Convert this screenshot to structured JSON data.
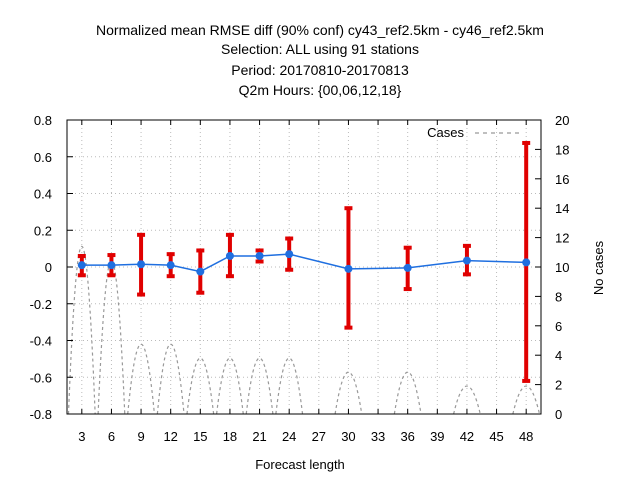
{
  "chart_data": {
    "type": "line",
    "title_lines": [
      "Normalized mean RMSE diff (90% conf) cy43_ref2.5km - cy46_ref2.5km",
      "Selection: ALL using    91 stations",
      "Period: 20170810-20170813",
      "Q2m   Hours: {00,06,12,18}"
    ],
    "xlabel": "Forecast length",
    "ylabel": "",
    "y2label": "No cases",
    "x_ticks": [
      3,
      6,
      9,
      12,
      15,
      18,
      21,
      24,
      27,
      30,
      33,
      36,
      39,
      42,
      45,
      48
    ],
    "xlim": [
      1.5,
      49.5
    ],
    "ylim": [
      -0.8,
      0.8
    ],
    "y_ticks": [
      -0.8,
      -0.6,
      -0.4,
      -0.2,
      0,
      0.2,
      0.4,
      0.6,
      0.8
    ],
    "y_tick_labels": [
      "-0.8",
      "-0.6",
      "-0.4",
      "-0.2",
      "0",
      "0.2",
      "0.4",
      "0.6",
      "0.8"
    ],
    "y2lim": [
      0,
      20
    ],
    "y2_ticks": [
      0,
      2,
      4,
      6,
      8,
      10,
      12,
      14,
      16,
      18,
      20
    ],
    "legend": {
      "label": "Cases",
      "position": "top-right"
    },
    "grid": true,
    "colors": {
      "line": "#1f6fe0",
      "marker": "#1f6fe0",
      "errorbar": "#e00000",
      "cases": "#999999"
    },
    "series": [
      {
        "x": [
          3,
          6,
          9,
          12,
          15,
          18,
          21,
          24,
          30,
          36,
          42,
          48
        ],
        "y": [
          0.01,
          0.01,
          0.015,
          0.01,
          -0.025,
          0.06,
          0.06,
          0.07,
          -0.01,
          -0.005,
          0.035,
          0.025
        ],
        "err_low": [
          -0.045,
          -0.045,
          -0.15,
          -0.05,
          -0.14,
          -0.05,
          0.03,
          -0.015,
          -0.33,
          -0.12,
          -0.04,
          -0.62
        ],
        "err_high": [
          0.06,
          0.065,
          0.175,
          0.07,
          0.09,
          0.175,
          0.09,
          0.155,
          0.32,
          0.105,
          0.115,
          0.675
        ]
      }
    ],
    "cases": {
      "x": [
        3,
        6,
        9,
        12,
        15,
        18,
        21,
        24,
        30,
        36,
        42,
        48
      ],
      "values": [
        12,
        11,
        5,
        5,
        4,
        4,
        4,
        4,
        3,
        3,
        2,
        2
      ]
    }
  }
}
